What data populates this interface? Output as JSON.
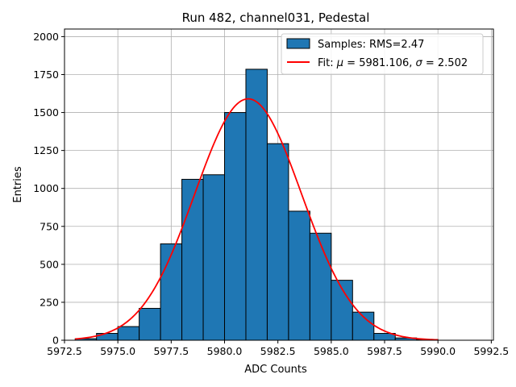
{
  "chart_data": {
    "type": "bar",
    "title": "Run 482, channel031, Pedestal",
    "xlabel": "ADC Counts",
    "ylabel": "Entries",
    "xlim": [
      5972.5,
      5992.6
    ],
    "ylim": [
      0,
      2050
    ],
    "grid": true,
    "legend_placement": "top-right",
    "x_ticks": [
      5972.5,
      5975.0,
      5977.5,
      5980.0,
      5982.5,
      5985.0,
      5987.5,
      5990.0,
      5992.5
    ],
    "x_tick_labels": [
      "5972.5",
      "5975.0",
      "5977.5",
      "5980.0",
      "5982.5",
      "5985.0",
      "5987.5",
      "5990.0",
      "5992.5"
    ],
    "y_ticks": [
      0,
      250,
      500,
      750,
      1000,
      1250,
      1500,
      1750,
      2000
    ],
    "y_tick_labels": [
      "0",
      "250",
      "500",
      "750",
      "1000",
      "1250",
      "1500",
      "1750",
      "2000"
    ],
    "histogram": {
      "name": "Samples: RMS=2.47",
      "color": "#1f77b4",
      "edge_color": "#000000",
      "bin_edges": [
        5973,
        5974,
        5975,
        5976,
        5977,
        5978,
        5979,
        5980,
        5981,
        5982,
        5983,
        5984,
        5985,
        5986,
        5987,
        5988,
        5989,
        5990,
        5991,
        5992
      ],
      "counts": [
        10,
        45,
        90,
        210,
        635,
        1060,
        1090,
        1500,
        1785,
        1295,
        850,
        705,
        395,
        185,
        45,
        15,
        5,
        0,
        0
      ]
    },
    "fit": {
      "name_prefix": "Fit: ",
      "name_mu": "μ",
      "name_mu_value": " = 5981.106, ",
      "name_sigma": "σ",
      "name_sigma_value": " = 2.502",
      "color": "#ff0000",
      "mu": 5981.106,
      "sigma": 2.502,
      "amplitude": 1590,
      "x_range": [
        5973,
        5990
      ]
    }
  }
}
